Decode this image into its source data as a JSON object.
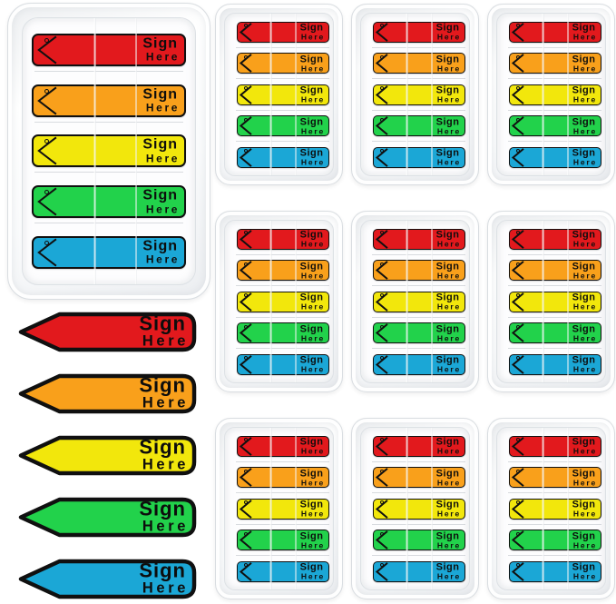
{
  "flag_label": {
    "line1": "Sign",
    "line2": "Here"
  },
  "colors": [
    {
      "name": "red",
      "hex": "#e2191d"
    },
    {
      "name": "orange",
      "hex": "#f9a01b"
    },
    {
      "name": "yellow",
      "hex": "#f2e70c"
    },
    {
      "name": "green",
      "hex": "#22d24b"
    },
    {
      "name": "blue",
      "hex": "#1ba7d6"
    }
  ],
  "outline_hex": "#101010",
  "groups": {
    "large_tray": {
      "flag_count": 5
    },
    "loose_flags": {
      "flag_count": 5
    },
    "small_trays": {
      "tray_count": 9,
      "flags_per_tray": 5
    }
  }
}
